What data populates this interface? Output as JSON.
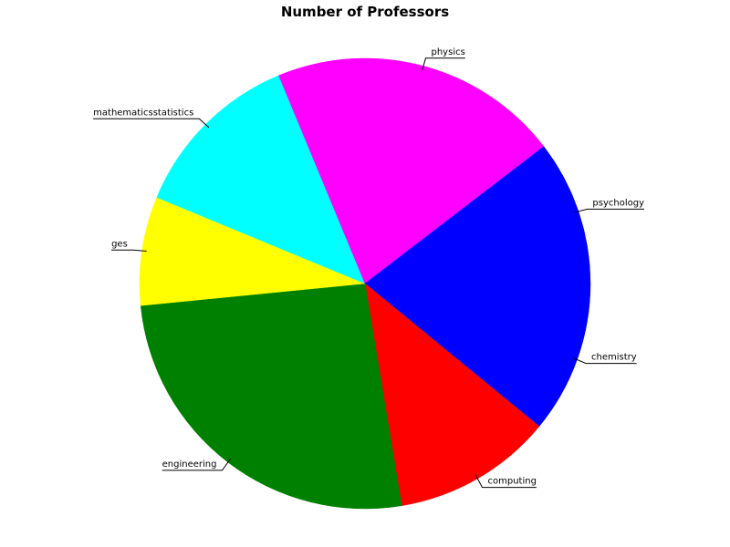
{
  "chart_data": {
    "type": "pie",
    "title": "Number of Professors",
    "start_angle_deg": 0,
    "direction": "clockwise",
    "slices": [
      {
        "label": "chemistry",
        "value": 10.5,
        "color": "#0000ff"
      },
      {
        "label": "computing",
        "value": 11.0,
        "color": "#ff0000"
      },
      {
        "label": "engineering",
        "value": 25.0,
        "color": "#008000"
      },
      {
        "label": "ges",
        "value": 7.5,
        "color": "#ffff00"
      },
      {
        "label": "mathematicsstatistics",
        "value": 12.0,
        "color": "#00ffff"
      },
      {
        "label": "physics",
        "value": 20.0,
        "color": "#ff00ff"
      },
      {
        "label": "psychology",
        "value": 10.0,
        "color": "#0000ff"
      }
    ]
  }
}
